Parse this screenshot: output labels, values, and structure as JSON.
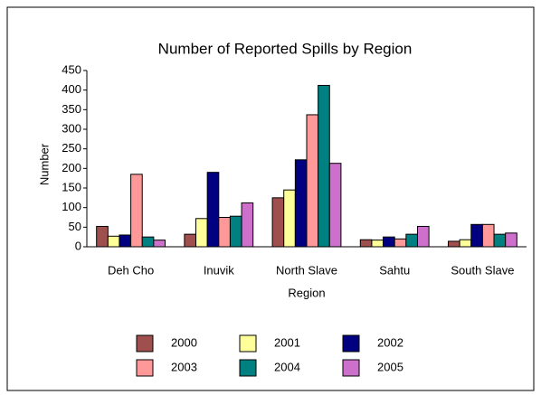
{
  "chart_data": {
    "type": "bar",
    "title": "Number of Reported Spills by Region",
    "x_label": "Region",
    "y_label": "Number",
    "categories": [
      "Deh Cho",
      "Inuvik",
      "North Slave",
      "Sahtu",
      "South Slave"
    ],
    "series": [
      {
        "name": "2000",
        "color": "#a04f4f",
        "values": [
          52,
          32,
          125,
          18,
          14
        ]
      },
      {
        "name": "2001",
        "color": "#ffff99",
        "values": [
          27,
          72,
          145,
          17,
          18
        ]
      },
      {
        "name": "2002",
        "color": "#000080",
        "values": [
          30,
          190,
          222,
          25,
          57
        ]
      },
      {
        "name": "2003",
        "color": "#ff9999",
        "values": [
          185,
          75,
          337,
          20,
          57
        ]
      },
      {
        "name": "2004",
        "color": "#008080",
        "values": [
          25,
          78,
          412,
          32,
          32
        ]
      },
      {
        "name": "2005",
        "color": "#cc70cc",
        "values": [
          17,
          112,
          213,
          52,
          35
        ]
      }
    ],
    "ylim": [
      0,
      450
    ],
    "yticks": [
      0,
      50,
      100,
      150,
      200,
      250,
      300,
      350,
      400,
      450
    ]
  }
}
